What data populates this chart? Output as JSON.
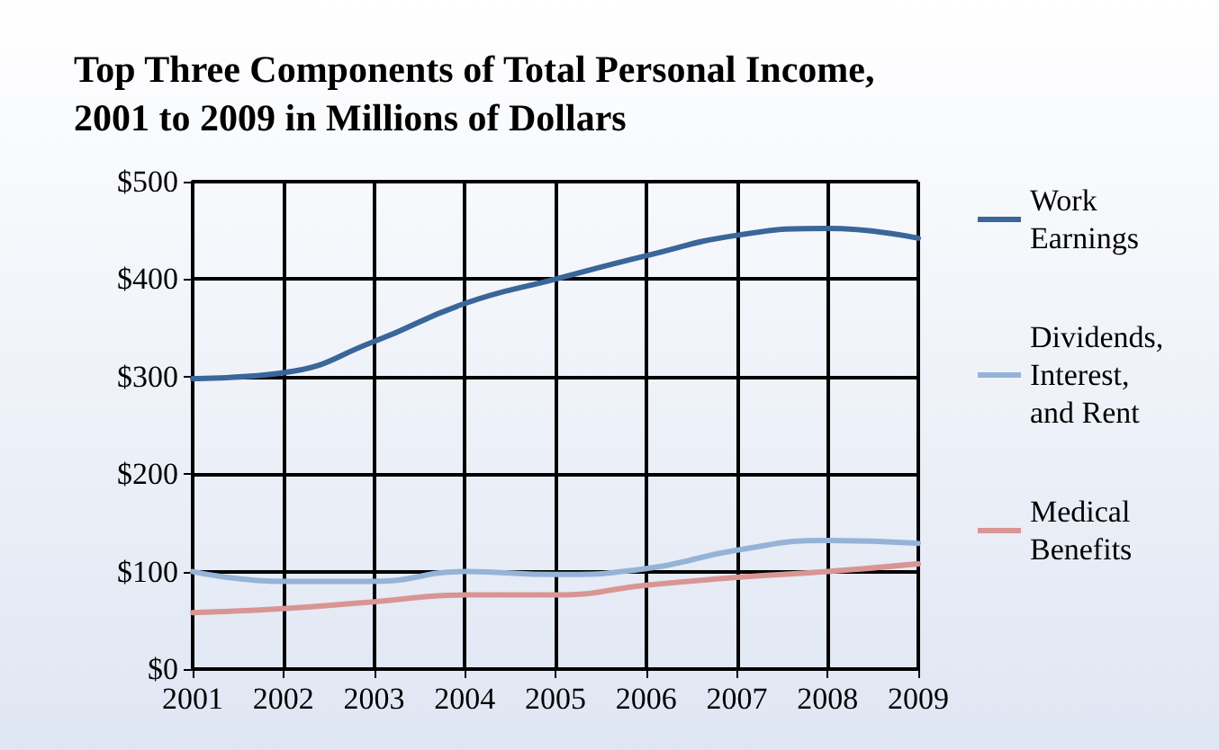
{
  "chart_data": {
    "type": "line",
    "title": "Top Three Components of Total Personal Income, 2001 to 2009 in Millions of Dollars",
    "categories": [
      "2001",
      "2002",
      "2003",
      "2004",
      "2005",
      "2006",
      "2007",
      "2008",
      "2009"
    ],
    "series": [
      {
        "name": "Work Earnings",
        "color": "#3a6699",
        "values": [
          298,
          304,
          336,
          375,
          400,
          424,
          445,
          452,
          442
        ]
      },
      {
        "name": "Dividends, Interest, and Rent",
        "color": "#95b3d7",
        "values": [
          100,
          90,
          90,
          100,
          97,
          103,
          122,
          132,
          129
        ]
      },
      {
        "name": "Medical Benefits",
        "color": "#d99594",
        "values": [
          58,
          62,
          69,
          76,
          76,
          86,
          94,
          100,
          108
        ]
      }
    ],
    "ylim": [
      0,
      500
    ],
    "yticks": [
      {
        "value": 0,
        "label": "$0"
      },
      {
        "value": 100,
        "label": "$100"
      },
      {
        "value": 200,
        "label": "$200"
      },
      {
        "value": 300,
        "label": "$300"
      },
      {
        "value": 400,
        "label": "$400"
      },
      {
        "value": 500,
        "label": "$500"
      }
    ],
    "grid": true,
    "legend": "right",
    "marker": "none",
    "line_style": "solid"
  }
}
